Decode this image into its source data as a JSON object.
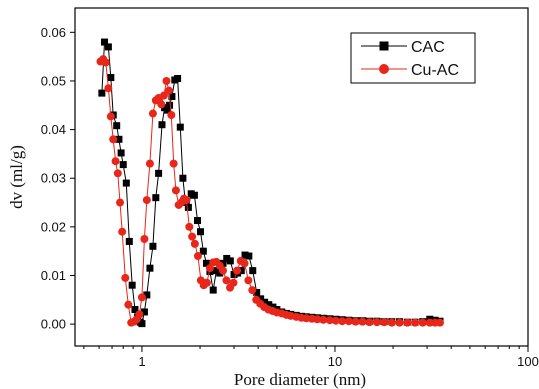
{
  "chart_data": {
    "type": "scatter",
    "title": "",
    "xlabel": "Pore diameter (nm)",
    "ylabel": "dv (ml/g)",
    "xscale": "log",
    "xlim": [
      0.45,
      100
    ],
    "ylim": [
      -0.0045,
      0.065
    ],
    "xticks": [
      1,
      10,
      100
    ],
    "yticks": [
      0.0,
      0.01,
      0.02,
      0.03,
      0.04,
      0.05,
      0.06
    ],
    "ytick_labels": [
      "0.00",
      "0.01",
      "0.02",
      "0.03",
      "0.04",
      "0.05",
      "0.06"
    ],
    "xtick_labels": [
      "1",
      "10",
      "100"
    ],
    "grid": false,
    "legend_position": "top-right",
    "series": [
      {
        "name": "CAC",
        "marker": "square",
        "color": "#000000",
        "x": [
          0.62,
          0.64,
          0.67,
          0.69,
          0.71,
          0.74,
          0.76,
          0.78,
          0.8,
          0.83,
          0.86,
          0.89,
          0.92,
          0.95,
          0.98,
          1.0,
          1.03,
          1.06,
          1.1,
          1.14,
          1.18,
          1.22,
          1.27,
          1.31,
          1.35,
          1.39,
          1.43,
          1.48,
          1.53,
          1.58,
          1.63,
          1.68,
          1.74,
          1.8,
          1.87,
          1.94,
          2.01,
          2.08,
          2.16,
          2.25,
          2.34,
          2.43,
          2.53,
          2.63,
          2.75,
          2.87,
          3.0,
          3.13,
          3.27,
          3.42,
          3.58,
          3.75,
          3.93,
          4.12,
          4.32,
          4.54,
          4.77,
          5.0,
          5.3,
          5.6,
          5.9,
          6.3,
          6.7,
          7.1,
          7.6,
          8.1,
          8.7,
          9.4,
          10.1,
          10.9,
          11.8,
          12.8,
          13.9,
          15.1,
          16.5,
          18.0,
          19.7,
          21.6,
          23.7,
          26.0,
          28.5,
          31.0,
          33.0,
          35.0
        ],
        "y": [
          0.0475,
          0.058,
          0.057,
          0.0507,
          0.043,
          0.0408,
          0.038,
          0.0352,
          0.0328,
          0.029,
          0.017,
          0.008,
          0.003,
          0.0015,
          0.0004,
          0.0001,
          0.0025,
          0.006,
          0.0115,
          0.016,
          0.026,
          0.031,
          0.041,
          0.0445,
          0.044,
          0.045,
          0.0468,
          0.0502,
          0.0505,
          0.0405,
          0.03,
          0.025,
          0.024,
          0.0268,
          0.0265,
          0.0213,
          0.019,
          0.015,
          0.0125,
          0.0108,
          0.007,
          0.011,
          0.0105,
          0.0125,
          0.0135,
          0.013,
          0.0102,
          0.0105,
          0.011,
          0.0142,
          0.014,
          0.011,
          0.0065,
          0.0052,
          0.0045,
          0.004,
          0.0035,
          0.003,
          0.0025,
          0.0022,
          0.002,
          0.0018,
          0.0016,
          0.0015,
          0.0014,
          0.0013,
          0.0012,
          0.0011,
          0.001,
          0.0009,
          0.0008,
          0.0007,
          0.0007,
          0.0006,
          0.0006,
          0.0005,
          0.0005,
          0.0005,
          0.0004,
          0.0004,
          0.0005,
          0.001,
          0.0008,
          0.0006
        ]
      },
      {
        "name": "Cu-AC",
        "marker": "circle",
        "color": "#e8261a",
        "x": [
          0.61,
          0.63,
          0.65,
          0.67,
          0.69,
          0.71,
          0.73,
          0.75,
          0.77,
          0.79,
          0.82,
          0.85,
          0.88,
          0.91,
          0.94,
          0.97,
          1.0,
          1.03,
          1.06,
          1.1,
          1.14,
          1.18,
          1.22,
          1.26,
          1.3,
          1.34,
          1.38,
          1.42,
          1.46,
          1.5,
          1.55,
          1.6,
          1.65,
          1.7,
          1.76,
          1.82,
          1.88,
          1.95,
          2.02,
          2.09,
          2.17,
          2.25,
          2.34,
          2.43,
          2.53,
          2.63,
          2.74,
          2.86,
          2.98,
          3.11,
          3.25,
          3.4,
          3.56,
          3.73,
          3.91,
          4.1,
          4.3,
          4.52,
          4.75,
          5.0,
          5.3,
          5.6,
          5.9,
          6.3,
          6.7,
          7.1,
          7.6,
          8.1,
          8.7,
          9.4,
          10.1,
          10.9,
          11.8,
          12.8,
          13.9,
          15.1,
          16.5,
          18.0,
          19.7,
          21.6,
          23.7,
          26.0,
          28.5,
          31.0,
          33.0,
          35.0
        ],
        "y": [
          0.054,
          0.0545,
          0.0538,
          0.0485,
          0.0427,
          0.038,
          0.0335,
          0.031,
          0.025,
          0.019,
          0.0095,
          0.004,
          0.0003,
          0.0005,
          0.001,
          0.002,
          0.0055,
          0.0175,
          0.0255,
          0.033,
          0.0433,
          0.046,
          0.0465,
          0.0452,
          0.047,
          0.05,
          0.048,
          0.043,
          0.033,
          0.0275,
          0.0245,
          0.025,
          0.0258,
          0.0255,
          0.02,
          0.018,
          0.0165,
          0.014,
          0.009,
          0.008,
          0.0085,
          0.0115,
          0.0127,
          0.0128,
          0.012,
          0.011,
          0.009,
          0.0075,
          0.0085,
          0.011,
          0.013,
          0.0125,
          0.009,
          0.007,
          0.005,
          0.0042,
          0.0035,
          0.003,
          0.0027,
          0.0024,
          0.0022,
          0.0019,
          0.0017,
          0.0015,
          0.0013,
          0.0012,
          0.0011,
          0.001,
          0.0009,
          0.0008,
          0.0007,
          0.0006,
          0.0006,
          0.0005,
          0.0005,
          0.0004,
          0.0004,
          0.0004,
          0.0003,
          0.0003,
          0.0003,
          0.0003,
          0.0003,
          0.0003,
          0.0003,
          0.0003
        ]
      }
    ]
  }
}
